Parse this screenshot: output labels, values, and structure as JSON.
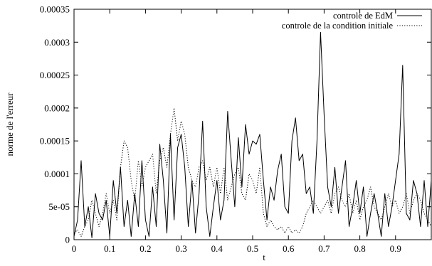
{
  "chart_data": {
    "type": "line",
    "title": "",
    "xlabel": "t",
    "ylabel": "norme de l'erreur",
    "xlim": [
      0,
      1
    ],
    "ylim": [
      0,
      0.00035
    ],
    "xticks": [
      {
        "value": 0,
        "label": "0"
      },
      {
        "value": 0.1,
        "label": "0.1"
      },
      {
        "value": 0.2,
        "label": "0.2"
      },
      {
        "value": 0.3,
        "label": "0.3"
      },
      {
        "value": 0.4,
        "label": "0.4"
      },
      {
        "value": 0.5,
        "label": "0.5"
      },
      {
        "value": 0.6,
        "label": "0.6"
      },
      {
        "value": 0.7,
        "label": "0.7"
      },
      {
        "value": 0.8,
        "label": "0.8"
      },
      {
        "value": 0.9,
        "label": "0.9"
      }
    ],
    "yticks": [
      {
        "value": 0,
        "label": "0"
      },
      {
        "value": 5e-05,
        "label": "5e-05"
      },
      {
        "value": 0.0001,
        "label": "0.0001"
      },
      {
        "value": 0.00015,
        "label": "0.00015"
      },
      {
        "value": 0.0002,
        "label": "0.0002"
      },
      {
        "value": 0.00025,
        "label": "0.00025"
      },
      {
        "value": 0.0003,
        "label": "0.0003"
      },
      {
        "value": 0.00035,
        "label": "0.00035"
      }
    ],
    "grid": false,
    "legend_position": "top-right",
    "series": [
      {
        "name": "controle de EdM",
        "style": "solid",
        "color": "#000000",
        "x": [
          0,
          0.01,
          0.02,
          0.03,
          0.04,
          0.05,
          0.06,
          0.07,
          0.08,
          0.09,
          0.1,
          0.11,
          0.12,
          0.13,
          0.14,
          0.15,
          0.16,
          0.17,
          0.18,
          0.19,
          0.2,
          0.21,
          0.22,
          0.23,
          0.24,
          0.25,
          0.26,
          0.27,
          0.28,
          0.29,
          0.3,
          0.31,
          0.32,
          0.33,
          0.34,
          0.35,
          0.36,
          0.37,
          0.38,
          0.39,
          0.4,
          0.41,
          0.42,
          0.43,
          0.44,
          0.45,
          0.46,
          0.47,
          0.48,
          0.49,
          0.5,
          0.51,
          0.52,
          0.53,
          0.54,
          0.55,
          0.56,
          0.57,
          0.58,
          0.59,
          0.6,
          0.61,
          0.62,
          0.63,
          0.64,
          0.65,
          0.66,
          0.67,
          0.68,
          0.69,
          0.7,
          0.71,
          0.72,
          0.73,
          0.74,
          0.75,
          0.76,
          0.77,
          0.78,
          0.79,
          0.8,
          0.81,
          0.82,
          0.83,
          0.84,
          0.85,
          0.86,
          0.87,
          0.88,
          0.89,
          0.9,
          0.91,
          0.92,
          0.93,
          0.94,
          0.95,
          0.96,
          0.97,
          0.98,
          0.99,
          1.0
        ],
        "values": [
          5e-06,
          3e-05,
          0.00012,
          2e-05,
          5e-05,
          3e-06,
          7e-05,
          4e-05,
          3e-05,
          6e-05,
          5e-06,
          9e-05,
          4e-05,
          0.00011,
          2e-05,
          6e-05,
          5e-06,
          7e-05,
          2e-05,
          0.00012,
          3e-05,
          5e-06,
          8e-05,
          2e-05,
          0.000145,
          9e-05,
          1e-05,
          0.00016,
          3e-05,
          0.00014,
          0.00016,
          0.00011,
          2e-05,
          9e-05,
          1e-05,
          7e-05,
          0.00018,
          5e-05,
          5e-06,
          5e-05,
          9e-05,
          3e-05,
          6e-05,
          0.000195,
          0.00012,
          5e-05,
          0.000155,
          8e-05,
          0.000175,
          0.00013,
          0.00015,
          0.000145,
          0.00016,
          9e-05,
          3e-05,
          8e-05,
          6e-05,
          0.000105,
          0.00013,
          5e-05,
          4e-05,
          0.00015,
          0.000185,
          0.00012,
          0.00013,
          7e-05,
          8e-05,
          4e-05,
          0.00015,
          0.000315,
          0.00019,
          8e-05,
          5e-05,
          0.00011,
          4e-05,
          8e-05,
          0.00012,
          2e-05,
          5e-05,
          9e-05,
          4e-05,
          8e-05,
          5e-06,
          4e-05,
          7e-05,
          4e-05,
          5e-06,
          7e-05,
          2e-05,
          5e-05,
          9e-05,
          0.00013,
          0.000265,
          4e-05,
          3e-05,
          9e-05,
          7e-05,
          2e-05,
          9e-05,
          2e-05,
          9e-05
        ]
      },
      {
        "name": "controle de la condition initiale",
        "style": "dotted",
        "color": "#000000",
        "x": [
          0,
          0.01,
          0.02,
          0.03,
          0.04,
          0.05,
          0.06,
          0.07,
          0.08,
          0.09,
          0.1,
          0.11,
          0.12,
          0.13,
          0.14,
          0.15,
          0.16,
          0.17,
          0.18,
          0.19,
          0.2,
          0.21,
          0.22,
          0.23,
          0.24,
          0.25,
          0.26,
          0.27,
          0.28,
          0.29,
          0.3,
          0.31,
          0.32,
          0.33,
          0.34,
          0.35,
          0.36,
          0.37,
          0.38,
          0.39,
          0.4,
          0.41,
          0.42,
          0.43,
          0.44,
          0.45,
          0.46,
          0.47,
          0.48,
          0.49,
          0.5,
          0.51,
          0.52,
          0.53,
          0.54,
          0.55,
          0.56,
          0.57,
          0.58,
          0.59,
          0.6,
          0.61,
          0.62,
          0.63,
          0.64,
          0.65,
          0.66,
          0.67,
          0.68,
          0.69,
          0.7,
          0.71,
          0.72,
          0.73,
          0.74,
          0.75,
          0.76,
          0.77,
          0.78,
          0.79,
          0.8,
          0.81,
          0.82,
          0.83,
          0.84,
          0.85,
          0.86,
          0.87,
          0.88,
          0.89,
          0.9,
          0.91,
          0.92,
          0.93,
          0.94,
          0.95,
          0.96,
          0.97,
          0.98,
          0.99,
          1.0
        ],
        "values": [
          1e-05,
          1.5e-05,
          5e-06,
          2e-05,
          3e-05,
          6e-05,
          4e-05,
          2e-05,
          4e-05,
          7e-05,
          4e-05,
          6e-05,
          3e-05,
          0.00011,
          0.00015,
          0.00014,
          9e-05,
          6e-05,
          0.00012,
          8e-05,
          0.00011,
          0.00012,
          0.00013,
          7e-05,
          0.00012,
          0.00014,
          0.00011,
          0.00016,
          0.0002,
          0.00015,
          0.00018,
          0.00016,
          0.00011,
          9e-05,
          8e-05,
          0.00011,
          0.00012,
          9e-05,
          0.00011,
          8e-05,
          0.00011,
          7e-05,
          0.00011,
          6e-05,
          8e-05,
          0.0001,
          0.00011,
          7e-05,
          6e-05,
          0.0001,
          9e-05,
          7e-05,
          0.00011,
          4e-05,
          2e-05,
          3e-05,
          2e-05,
          1.5e-05,
          2e-05,
          1e-05,
          2e-05,
          1e-05,
          1.5e-05,
          1e-05,
          2e-05,
          4e-05,
          5e-05,
          6e-05,
          5e-05,
          4e-05,
          5e-05,
          6e-05,
          4e-05,
          7e-05,
          8e-05,
          6e-05,
          5e-05,
          7e-05,
          4e-05,
          6e-05,
          3e-05,
          5e-05,
          6e-05,
          8e-05,
          5e-05,
          4e-05,
          3e-05,
          5e-05,
          7e-05,
          5e-05,
          6e-05,
          4e-05,
          5e-05,
          7e-05,
          4e-05,
          6e-05,
          7e-05,
          6e-05,
          4e-05,
          3e-05,
          2e-05
        ]
      }
    ]
  }
}
